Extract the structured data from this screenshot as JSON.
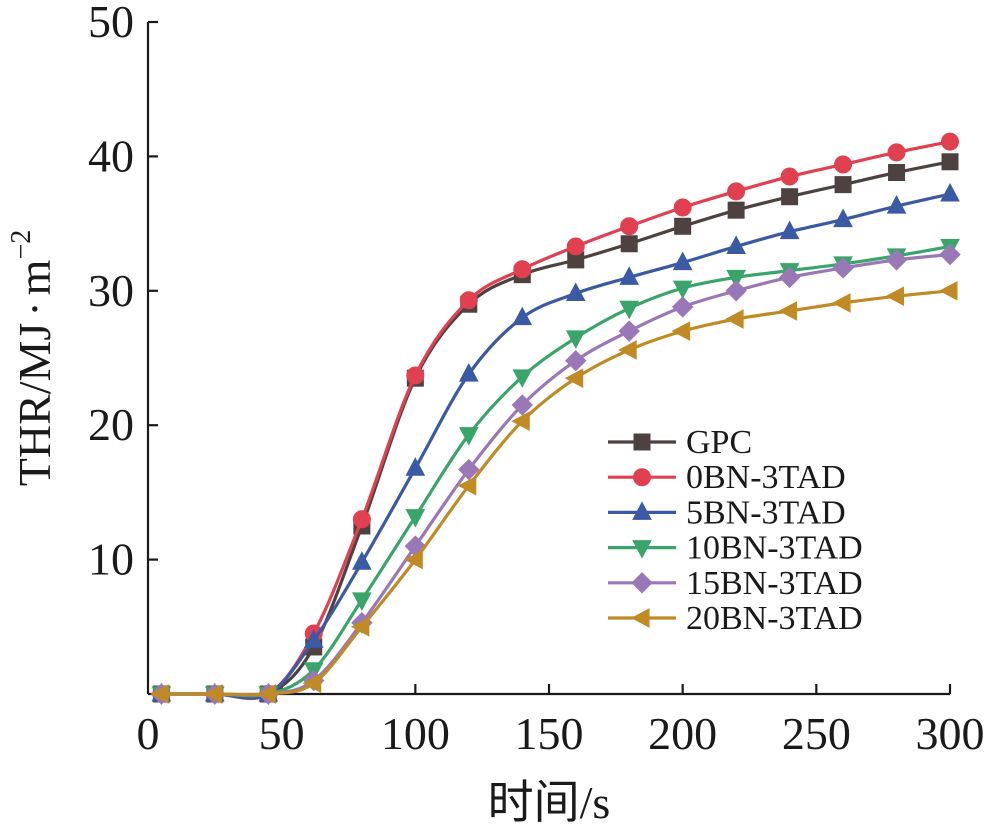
{
  "chart_data": {
    "type": "line",
    "xlabel_parts": [
      "时间",
      "/s"
    ],
    "ylabel_parts": [
      "THR/MJ",
      "·",
      "m",
      "−2"
    ],
    "xlim": [
      0,
      300
    ],
    "ylim": [
      0,
      50
    ],
    "xticks": [
      "0",
      "50",
      "100",
      "150",
      "200",
      "250",
      "300"
    ],
    "yticks": [
      "10",
      "20",
      "30",
      "40",
      "50"
    ],
    "ytick_values": [
      10,
      20,
      30,
      40,
      50
    ],
    "xtick_values": [
      0,
      50,
      100,
      150,
      200,
      250,
      300
    ],
    "grid": false,
    "legend_position": "center-right",
    "x": [
      5,
      25,
      45,
      62,
      80,
      100,
      120,
      140,
      160,
      180,
      200,
      220,
      240,
      260,
      280,
      300
    ],
    "series": [
      {
        "name": "GPC",
        "color": "#4d4240",
        "marker": "square",
        "values": [
          0,
          0,
          0,
          3.5,
          12.5,
          23.5,
          29,
          31.2,
          32.3,
          33.5,
          34.8,
          36,
          37,
          37.9,
          38.8,
          39.6
        ]
      },
      {
        "name": "0BN-3TAD",
        "color": "#e04050",
        "marker": "circle",
        "values": [
          0,
          0,
          0,
          4.5,
          13,
          23.7,
          29.3,
          31.6,
          33.3,
          34.8,
          36.2,
          37.4,
          38.5,
          39.4,
          40.3,
          41.1
        ]
      },
      {
        "name": "5BN-3TAD",
        "color": "#3a5aa5",
        "marker": "triangle-up",
        "values": [
          0,
          0,
          0,
          4,
          9.8,
          16.8,
          23.8,
          28,
          29.8,
          31,
          32.1,
          33.3,
          34.4,
          35.3,
          36.3,
          37.2
        ]
      },
      {
        "name": "10BN-3TAD",
        "color": "#3aa56a",
        "marker": "triangle-down",
        "values": [
          0,
          0,
          0,
          1.8,
          7,
          13.2,
          19.3,
          23.6,
          26.5,
          28.7,
          30.2,
          31,
          31.5,
          32,
          32.6,
          33.3
        ]
      },
      {
        "name": "15BN-3TAD",
        "color": "#9a78b8",
        "marker": "diamond",
        "values": [
          0,
          0,
          0,
          1,
          5.3,
          11,
          16.7,
          21.5,
          24.8,
          27,
          28.8,
          30,
          31,
          31.7,
          32.3,
          32.7
        ]
      },
      {
        "name": "20BN-3TAD",
        "color": "#c08a25",
        "marker": "triangle-left",
        "values": [
          0,
          0,
          0,
          0.8,
          5,
          10,
          15.5,
          20.3,
          23.5,
          25.6,
          27,
          27.9,
          28.5,
          29.1,
          29.6,
          30
        ]
      }
    ]
  }
}
